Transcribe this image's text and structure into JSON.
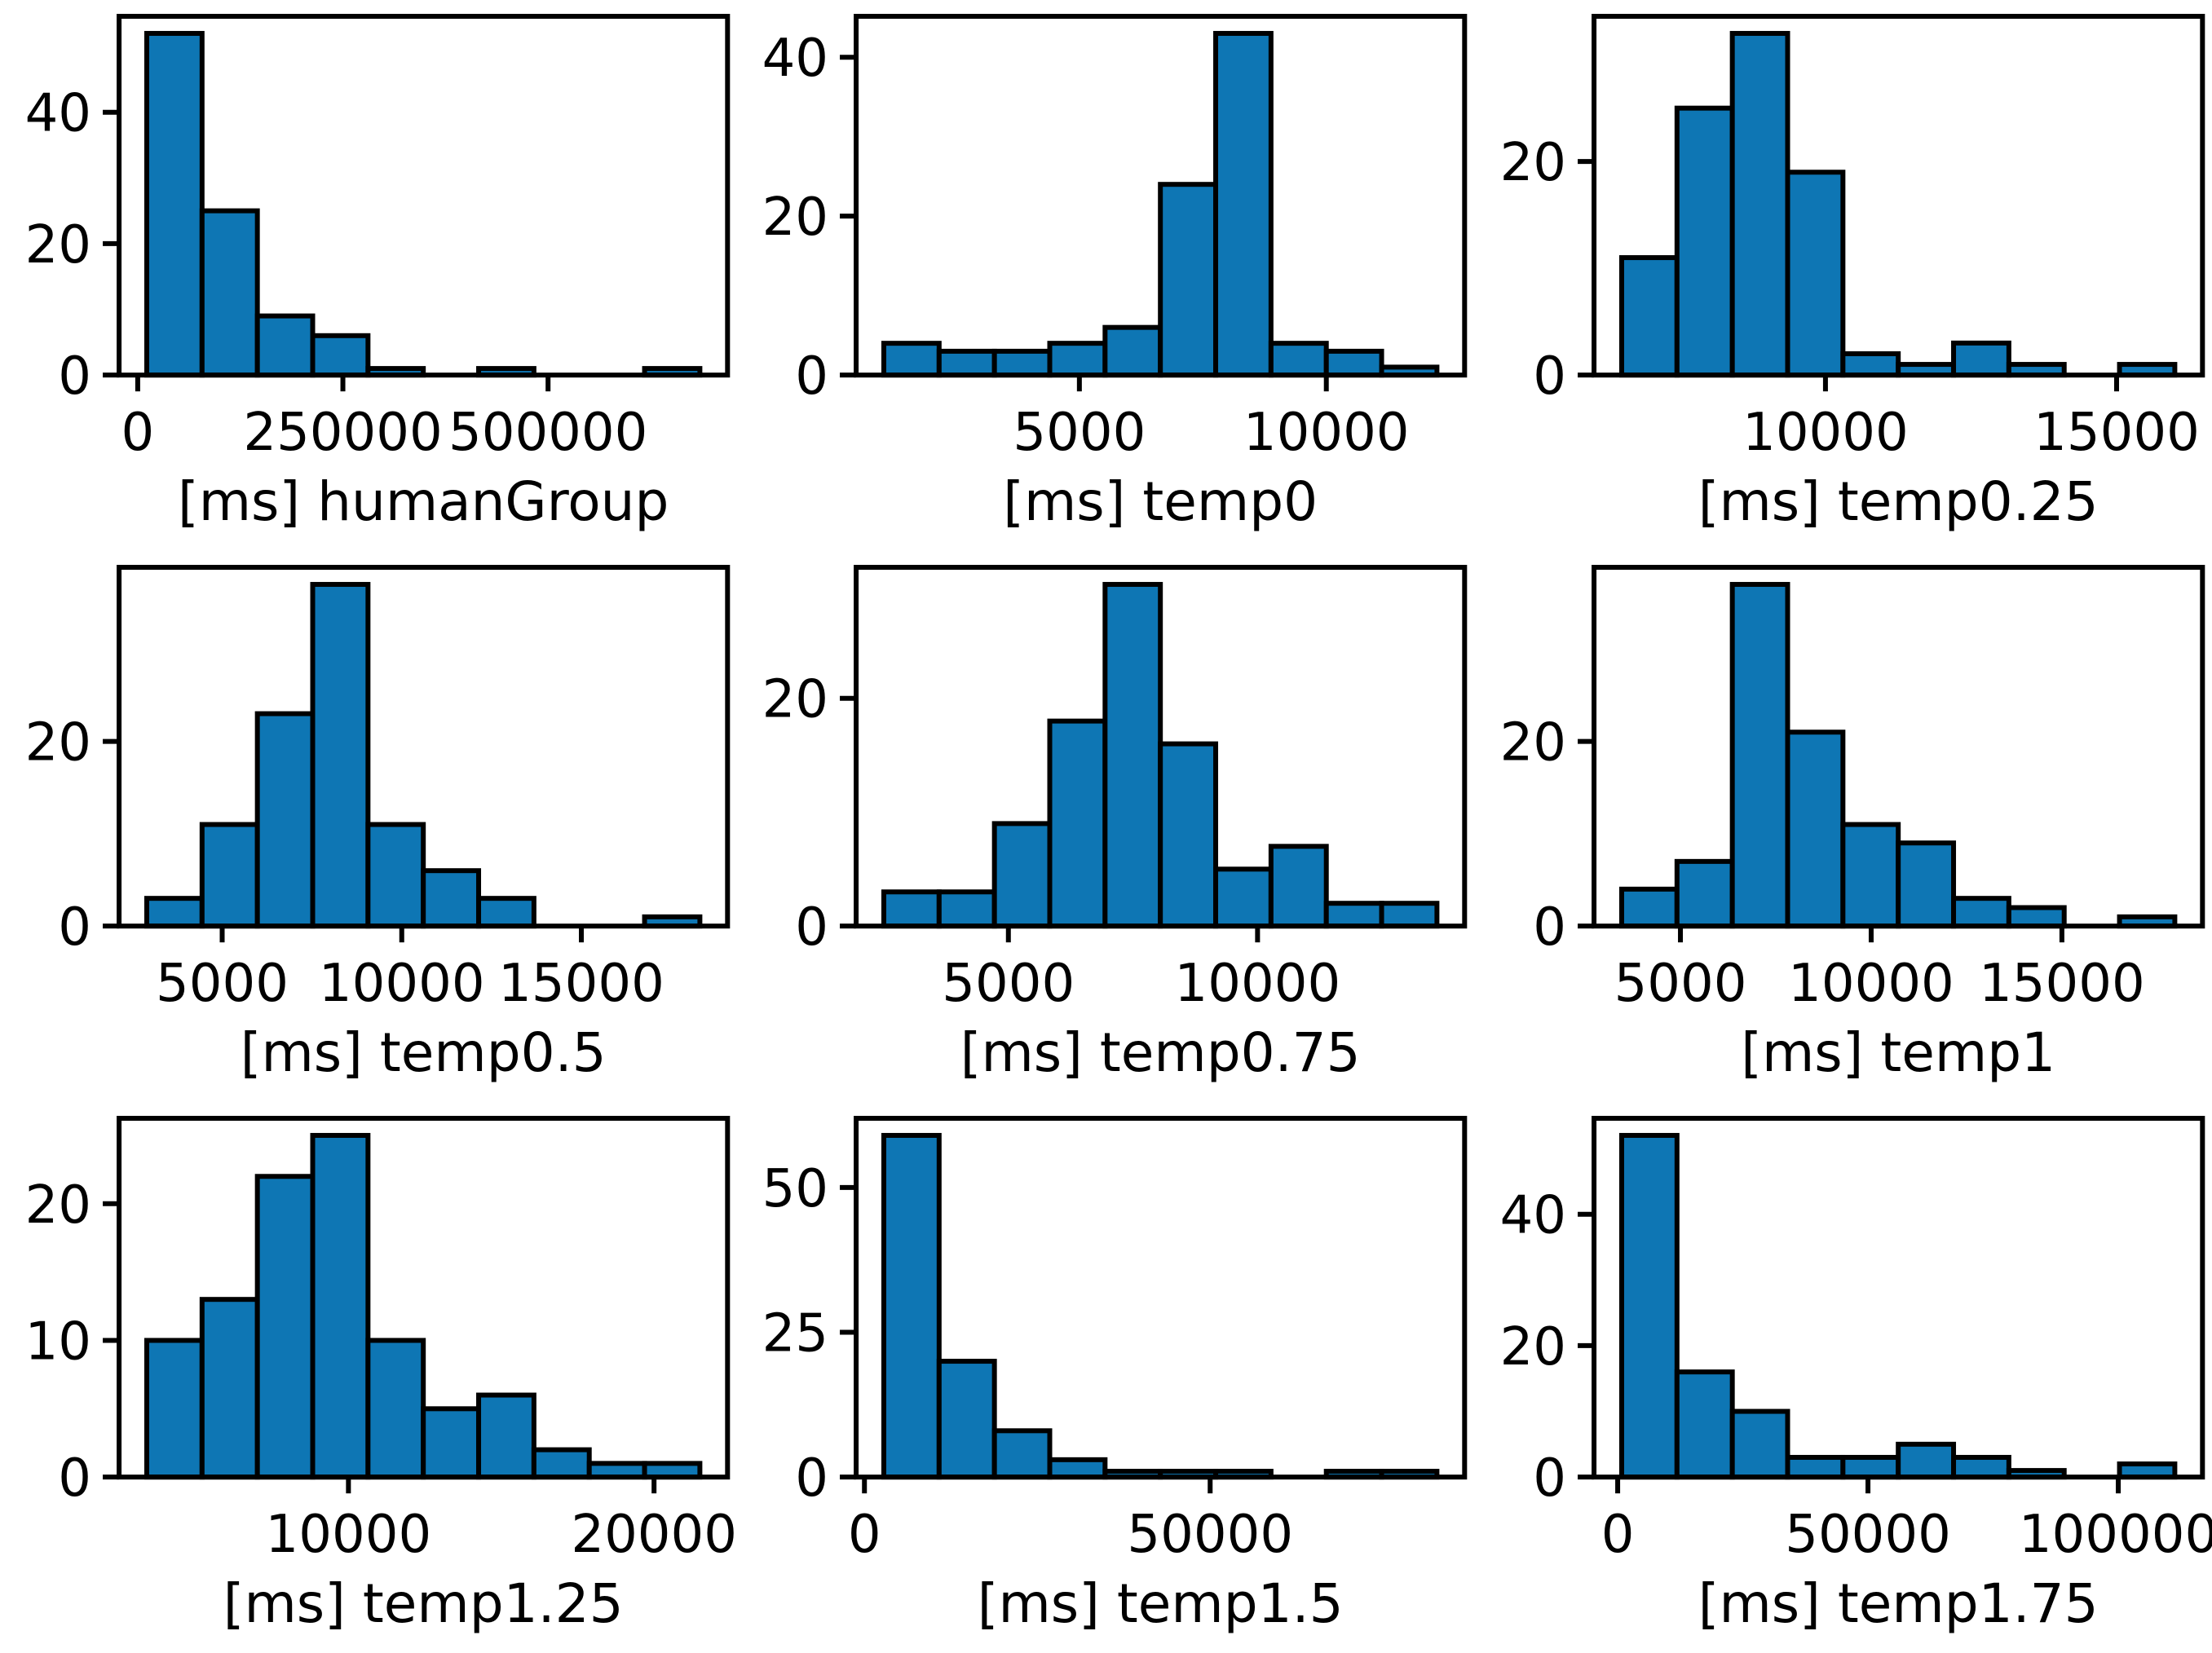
{
  "page": {
    "background": "#ffffff",
    "figure_type": "3x3 grid of response-time histograms"
  },
  "style": {
    "bar_color": "#0e76b4",
    "edge_color": "#000000",
    "spine_color": "#000000",
    "text_color": "#000000"
  },
  "chart_data": [
    {
      "type": "bar",
      "subtype": "histogram",
      "xlabel": "[ms] humanGroup",
      "values": [
        52,
        25,
        9,
        6,
        1,
        0,
        1,
        0,
        0,
        1
      ],
      "bin_edges": [
        11000,
        78400,
        145800,
        213200,
        280600,
        348000,
        415400,
        482800,
        550200,
        617600,
        685000
      ],
      "xlim": [
        -22700,
        718700
      ],
      "ylim": [
        0,
        54.6
      ],
      "x_ticks": [
        {
          "value": 0,
          "label": "0"
        },
        {
          "value": 250000,
          "label": "250000"
        },
        {
          "value": 500000,
          "label": "500000"
        }
      ],
      "y_ticks": [
        {
          "value": 0,
          "label": "0"
        },
        {
          "value": 20,
          "label": "20"
        },
        {
          "value": 40,
          "label": "40"
        }
      ]
    },
    {
      "type": "bar",
      "subtype": "histogram",
      "xlabel": "[ms] temp0",
      "values": [
        4,
        3,
        3,
        4,
        6,
        24,
        43,
        4,
        3,
        1
      ],
      "bin_edges": [
        1040,
        2160,
        3280,
        4400,
        5520,
        6640,
        7760,
        8880,
        10000,
        11120,
        12240
      ],
      "xlim": [
        480,
        12800
      ],
      "ylim": [
        0,
        45.15
      ],
      "x_ticks": [
        {
          "value": 5000,
          "label": "5000"
        },
        {
          "value": 10000,
          "label": "10000"
        }
      ],
      "y_ticks": [
        {
          "value": 0,
          "label": "0"
        },
        {
          "value": 20,
          "label": "20"
        },
        {
          "value": 40,
          "label": "40"
        }
      ]
    },
    {
      "type": "bar",
      "subtype": "histogram",
      "xlabel": "[ms] temp0.25",
      "values": [
        11,
        25,
        32,
        19,
        2,
        1,
        3,
        1,
        0,
        1
      ],
      "bin_edges": [
        6500,
        7450,
        8400,
        9350,
        10300,
        11250,
        12200,
        13150,
        14100,
        15050,
        16000
      ],
      "xlim": [
        6025,
        16475
      ],
      "ylim": [
        0,
        33.6
      ],
      "x_ticks": [
        {
          "value": 10000,
          "label": "10000"
        },
        {
          "value": 15000,
          "label": "15000"
        }
      ],
      "y_ticks": [
        {
          "value": 0,
          "label": "0"
        },
        {
          "value": 20,
          "label": "20"
        }
      ]
    },
    {
      "type": "bar",
      "subtype": "histogram",
      "xlabel": "[ms] temp0.5",
      "values": [
        3,
        11,
        23,
        37,
        11,
        6,
        3,
        0,
        0,
        1
      ],
      "bin_edges": [
        2900,
        4440,
        5980,
        7520,
        9060,
        10600,
        12140,
        13680,
        15220,
        16760,
        18300
      ],
      "xlim": [
        2130,
        19070
      ],
      "ylim": [
        0,
        38.85
      ],
      "x_ticks": [
        {
          "value": 5000,
          "label": "5000"
        },
        {
          "value": 10000,
          "label": "10000"
        },
        {
          "value": 15000,
          "label": "15000"
        }
      ],
      "y_ticks": [
        {
          "value": 0,
          "label": "0"
        },
        {
          "value": 20,
          "label": "20"
        }
      ]
    },
    {
      "type": "bar",
      "subtype": "histogram",
      "xlabel": "[ms] temp0.75",
      "values": [
        3,
        3,
        9,
        18,
        30,
        16,
        5,
        7,
        2,
        2
      ],
      "bin_edges": [
        2500,
        3610,
        4720,
        5830,
        6940,
        8050,
        9160,
        10270,
        11380,
        12490,
        13600
      ],
      "xlim": [
        1945,
        14155
      ],
      "ylim": [
        0,
        31.5
      ],
      "x_ticks": [
        {
          "value": 5000,
          "label": "5000"
        },
        {
          "value": 10000,
          "label": "10000"
        }
      ],
      "y_ticks": [
        {
          "value": 0,
          "label": "0"
        },
        {
          "value": 20,
          "label": "20"
        }
      ]
    },
    {
      "type": "bar",
      "subtype": "histogram",
      "xlabel": "[ms] temp1",
      "values": [
        4,
        7,
        37,
        21,
        11,
        9,
        3,
        2,
        0,
        1
      ],
      "bin_edges": [
        3460,
        4910,
        6360,
        7810,
        9260,
        10710,
        12160,
        13610,
        15060,
        16510,
        17960
      ],
      "xlim": [
        2735,
        18685
      ],
      "ylim": [
        0,
        38.85
      ],
      "x_ticks": [
        {
          "value": 5000,
          "label": "5000"
        },
        {
          "value": 10000,
          "label": "10000"
        },
        {
          "value": 15000,
          "label": "15000"
        }
      ],
      "y_ticks": [
        {
          "value": 0,
          "label": "0"
        },
        {
          "value": 20,
          "label": "20"
        }
      ]
    },
    {
      "type": "bar",
      "subtype": "histogram",
      "xlabel": "[ms] temp1.25",
      "values": [
        10,
        13,
        22,
        25,
        10,
        5,
        6,
        2,
        1,
        1
      ],
      "bin_edges": [
        3400,
        5210,
        7020,
        8830,
        10640,
        12450,
        14260,
        16070,
        17880,
        19690,
        21500
      ],
      "xlim": [
        2495,
        22405
      ],
      "ylim": [
        0,
        26.25
      ],
      "x_ticks": [
        {
          "value": 10000,
          "label": "10000"
        },
        {
          "value": 20000,
          "label": "20000"
        }
      ],
      "y_ticks": [
        {
          "value": 0,
          "label": "0"
        },
        {
          "value": 10,
          "label": "10"
        },
        {
          "value": 20,
          "label": "20"
        }
      ]
    },
    {
      "type": "bar",
      "subtype": "histogram",
      "xlabel": "[ms] temp1.5",
      "values": [
        59,
        20,
        8,
        3,
        1,
        1,
        1,
        0,
        1,
        1
      ],
      "bin_edges": [
        2800,
        10800,
        18800,
        26800,
        34800,
        42800,
        50800,
        58800,
        66800,
        74800,
        82800
      ],
      "xlim": [
        -1200,
        86800
      ],
      "ylim": [
        0,
        61.95
      ],
      "x_ticks": [
        {
          "value": 0,
          "label": "0"
        },
        {
          "value": 50000,
          "label": "50000"
        }
      ],
      "y_ticks": [
        {
          "value": 0,
          "label": "0"
        },
        {
          "value": 25,
          "label": "25"
        },
        {
          "value": 50,
          "label": "50"
        }
      ]
    },
    {
      "type": "bar",
      "subtype": "histogram",
      "xlabel": "[ms] temp1.75",
      "values": [
        52,
        16,
        10,
        3,
        3,
        5,
        3,
        1,
        0,
        2
      ],
      "bin_edges": [
        800,
        11850,
        22900,
        33950,
        45000,
        56050,
        67100,
        78150,
        89200,
        100250,
        111300
      ],
      "xlim": [
        -4725,
        116825
      ],
      "ylim": [
        0,
        54.6
      ],
      "x_ticks": [
        {
          "value": 0,
          "label": "0"
        },
        {
          "value": 50000,
          "label": "50000"
        },
        {
          "value": 100000,
          "label": "100000"
        }
      ],
      "y_ticks": [
        {
          "value": 0,
          "label": "0"
        },
        {
          "value": 20,
          "label": "20"
        },
        {
          "value": 40,
          "label": "40"
        }
      ]
    }
  ]
}
